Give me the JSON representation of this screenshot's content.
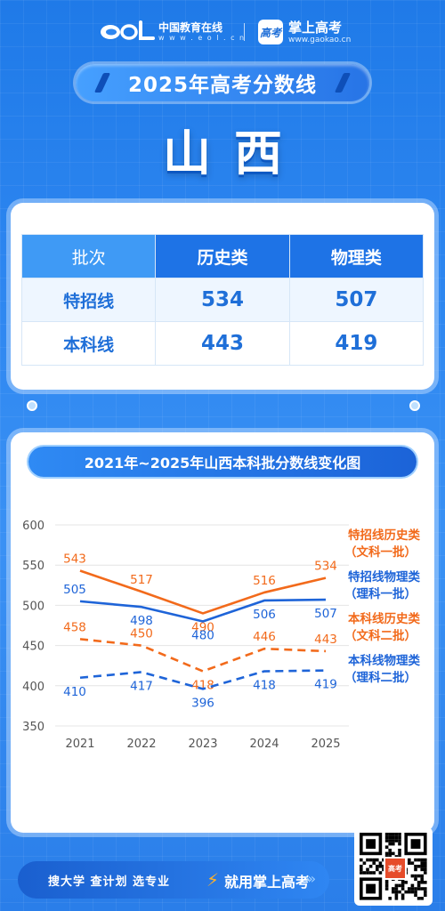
{
  "header": {
    "eol_name": "中国教育在线",
    "eol_url": "w w w . e o l . c n",
    "gaokao_badge": "高考",
    "gaokao_name": "掌上高考",
    "gaokao_url": "www.gaokao.cn"
  },
  "title": "2025年高考分数线",
  "province": "山西",
  "score_table": {
    "headers": [
      "批次",
      "历史类",
      "物理类"
    ],
    "rows": [
      {
        "label": "特招线",
        "history": "534",
        "physics": "507"
      },
      {
        "label": "本科线",
        "history": "443",
        "physics": "419"
      }
    ]
  },
  "colors": {
    "history": "#f26a1b",
    "physics": "#1e64d8",
    "axis_text": "#555555",
    "grid": "#e4e4e4"
  },
  "chart_data": {
    "type": "line",
    "title": "2021年~2025年山西本科批分数线变化图",
    "x": [
      "2021",
      "2022",
      "2023",
      "2024",
      "2025"
    ],
    "ylim": [
      350,
      600
    ],
    "yticks": [
      "600",
      "550",
      "500",
      "450",
      "400",
      "350"
    ],
    "grid": true,
    "legend_placement": "right",
    "series": [
      {
        "name": "特招线历史类",
        "name2": "（文科一批）",
        "values": [
          543,
          517,
          490,
          516,
          534
        ],
        "dashed": false,
        "color": "#f26a1b"
      },
      {
        "name": "特招线物理类",
        "name2": "（理科一批）",
        "values": [
          505,
          498,
          480,
          506,
          507
        ],
        "dashed": false,
        "color": "#1e64d8"
      },
      {
        "name": "本科线历史类",
        "name2": "（文科二批）",
        "values": [
          458,
          450,
          418,
          446,
          443
        ],
        "dashed": true,
        "color": "#f26a1b"
      },
      {
        "name": "本科线物理类",
        "name2": "（理科二批）",
        "values": [
          410,
          417,
          396,
          418,
          419
        ],
        "dashed": true,
        "color": "#1e64d8"
      }
    ]
  },
  "footer": {
    "left_text": "搜大学 查计划 选专业",
    "right_text": "就用掌上高考",
    "qr_label": "高考"
  }
}
